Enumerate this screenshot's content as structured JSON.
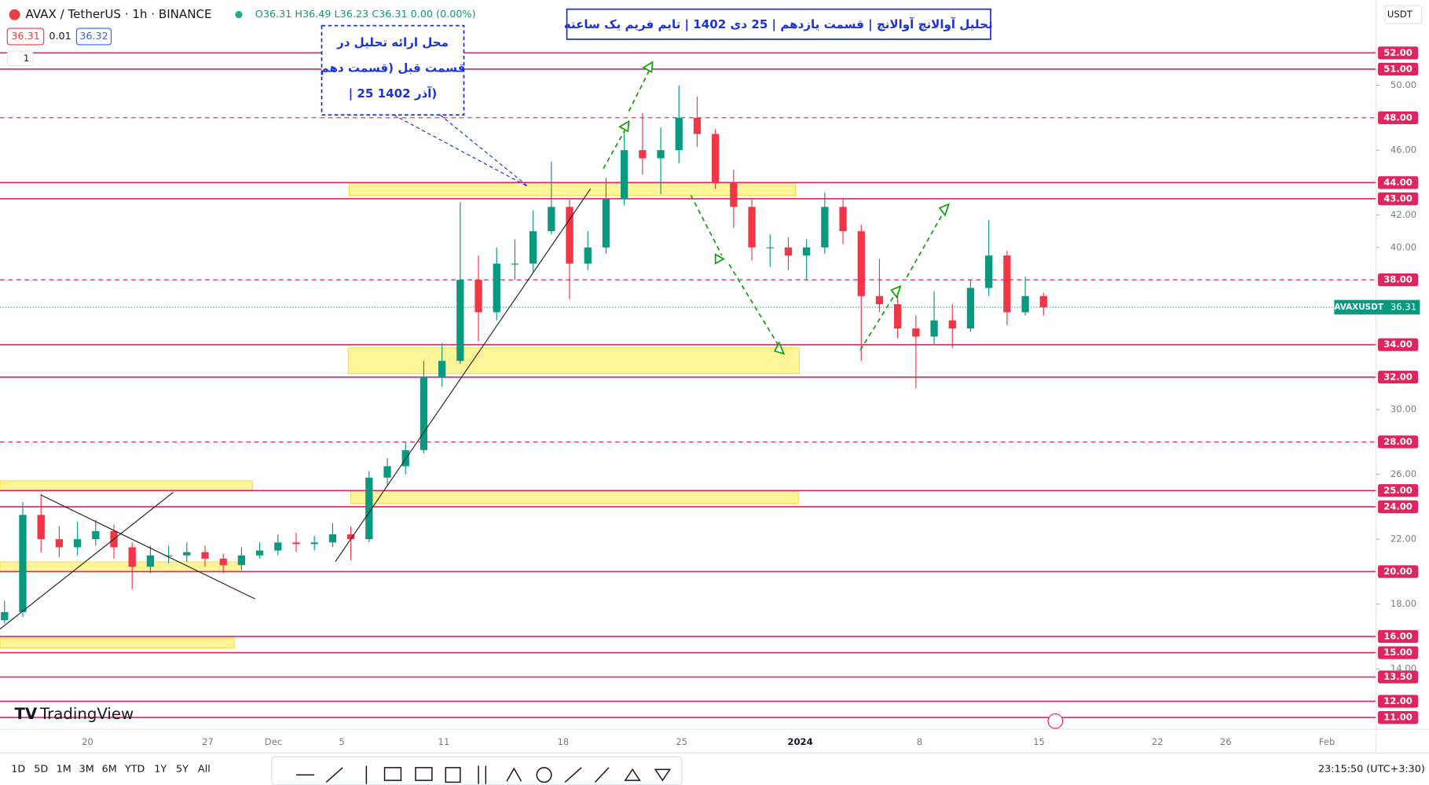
{
  "header": {
    "symbol": "AVAX / TetherUS · 1h · BINANCE",
    "ohlc": "O36.31 H36.49 L36.23 C36.31 0.00 (0.00%)",
    "bid": "36.31",
    "spread": "0.01",
    "ask": "36.32",
    "indicator_count": "1",
    "currency": "USDT"
  },
  "chart_data": {
    "type": "candlestick",
    "title": "تحلیل آوالانچ آوالانچ | قسمت یازدهم | 25 دی 1402 | تایم فریم یک ساعته",
    "annotation": [
      "محل ارائه تحلیل در",
      "قسمت قبل (قسمت دهم",
      "| 25 آذر 1402)"
    ],
    "x_labels": [
      "20",
      "27",
      "Dec",
      "5",
      "11",
      "18",
      "25",
      "2024",
      "8",
      "15",
      "22",
      "26",
      "Feb"
    ],
    "open": [
      17,
      17.5,
      23.5,
      22,
      21.5,
      22,
      22.5,
      21.5,
      20.3,
      21,
      21,
      21.2,
      20.8,
      20.4,
      21,
      21.3,
      21.8,
      21.7,
      21.8,
      22.3,
      22,
      25.8,
      26.5,
      27.5,
      32,
      33,
      38,
      36,
      39,
      39,
      41,
      42.5,
      39,
      40,
      43,
      46,
      45.5,
      46,
      48,
      47,
      44,
      42.5,
      40,
      40,
      39.5,
      40,
      42.5,
      41,
      37,
      36.5,
      35,
      34.5,
      35.5,
      35,
      37.5,
      39.5,
      36,
      37
    ],
    "high": [
      18.2,
      24.3,
      24.8,
      22.8,
      23.1,
      23.2,
      22.9,
      21.8,
      21.6,
      21.6,
      21.8,
      21.6,
      21.1,
      21.5,
      21.8,
      22.3,
      22.4,
      22.2,
      23,
      22.8,
      26.2,
      27,
      28,
      33,
      34.1,
      42.8,
      39.5,
      40,
      40.5,
      42.3,
      45.3,
      43,
      41,
      44.3,
      47.2,
      48.3,
      47.4,
      50,
      49.3,
      47.3,
      44.8,
      43,
      40.8,
      40.6,
      40.5,
      43.4,
      43,
      41.4,
      39.3,
      37.5,
      35.8,
      37.3,
      36.5,
      38,
      41.7,
      39.8,
      38.2,
      37.2
    ],
    "low": [
      16.8,
      17.2,
      21.2,
      20.9,
      21,
      21.6,
      20.8,
      18.9,
      19.9,
      20.5,
      20.6,
      20.3,
      19.9,
      20.1,
      20.8,
      21,
      21.2,
      21.3,
      21.5,
      20.7,
      21.8,
      25.3,
      26,
      27.3,
      31.4,
      32.8,
      34.2,
      35.5,
      38,
      38.5,
      40.8,
      36.8,
      38.6,
      39.6,
      42.6,
      44.5,
      43.3,
      45.2,
      46.2,
      43.6,
      41.2,
      39.2,
      38.8,
      38.6,
      38,
      39.6,
      40.2,
      33,
      36,
      34.4,
      31.3,
      34,
      33.8,
      34.8,
      37,
      35.2,
      35.8,
      35.8
    ],
    "close": [
      17.5,
      23.5,
      22,
      21.5,
      22,
      22.5,
      21.5,
      20.3,
      21,
      21,
      21.2,
      20.8,
      20.4,
      21,
      21.3,
      21.8,
      21.7,
      21.8,
      22.3,
      22,
      25.8,
      26.5,
      27.5,
      32,
      33,
      38,
      36,
      39,
      39,
      41,
      42.5,
      39,
      40,
      43,
      46,
      45.5,
      46,
      48,
      47,
      44,
      42.5,
      40,
      40,
      39.5,
      40,
      42.5,
      41,
      37,
      36.5,
      35,
      34.5,
      35.5,
      35,
      37.5,
      39.5,
      36,
      37,
      36.31
    ],
    "ylim": [
      10.27,
      55.26
    ],
    "yticks": [
      {
        "value": 50,
        "label": "50.00"
      },
      {
        "value": 46,
        "label": "46.00"
      },
      {
        "value": 42,
        "label": "42.00"
      },
      {
        "value": 40,
        "label": "40.00"
      },
      {
        "value": 30,
        "label": "30.00"
      },
      {
        "value": 26,
        "label": "26.00"
      },
      {
        "value": 22,
        "label": "22.00"
      },
      {
        "value": 18,
        "label": "18.00"
      },
      {
        "value": 14,
        "label": "14.00"
      }
    ],
    "levels": [
      {
        "value": 52,
        "label": "52.00",
        "style": "solid"
      },
      {
        "value": 51,
        "label": "51.00",
        "style": "solid"
      },
      {
        "value": 48,
        "label": "48.00",
        "style": "dashed"
      },
      {
        "value": 44,
        "label": "44.00",
        "style": "solid"
      },
      {
        "value": 43,
        "label": "43.00",
        "style": "solid"
      },
      {
        "value": 38,
        "label": "38.00",
        "style": "dashed"
      },
      {
        "value": 34,
        "label": "34.00",
        "style": "solid"
      },
      {
        "value": 32,
        "label": "32.00",
        "style": "solid"
      },
      {
        "value": 28,
        "label": "28.00",
        "style": "dashed"
      },
      {
        "value": 25,
        "label": "25.00",
        "style": "solid"
      },
      {
        "value": 24,
        "label": "24.00",
        "style": "solid"
      },
      {
        "value": 20,
        "label": "20.00",
        "style": "solid"
      },
      {
        "value": 16,
        "label": "16.00",
        "style": "solid"
      },
      {
        "value": 15,
        "label": "15.00",
        "style": "solid"
      },
      {
        "value": 13.5,
        "label": "13.50",
        "style": "solid"
      },
      {
        "value": 12,
        "label": "12.00",
        "style": "solid"
      },
      {
        "value": 11,
        "label": "11.00",
        "style": "solid"
      }
    ],
    "zones": [
      {
        "low": 43.2,
        "high": 44
      },
      {
        "low": 32.2,
        "high": 33.8
      },
      {
        "low": 24.2,
        "high": 25
      },
      {
        "low": 25,
        "high": 25.6
      },
      {
        "low": 20,
        "high": 20.6
      },
      {
        "low": 15.3,
        "high": 15.9
      }
    ],
    "last_price": {
      "name": "AVAXUSDT",
      "value": 36.31
    },
    "colors": {
      "up": "#089981",
      "down": "#f23645",
      "level": "#e0245e",
      "zone": "#fff176"
    }
  },
  "toolbar": {
    "ranges": [
      "1D",
      "5D",
      "1M",
      "3M",
      "6M",
      "YTD",
      "1Y",
      "5Y",
      "All"
    ],
    "clock": "23:15:50 (UTC+3:30)"
  },
  "watermark": "TradingView"
}
